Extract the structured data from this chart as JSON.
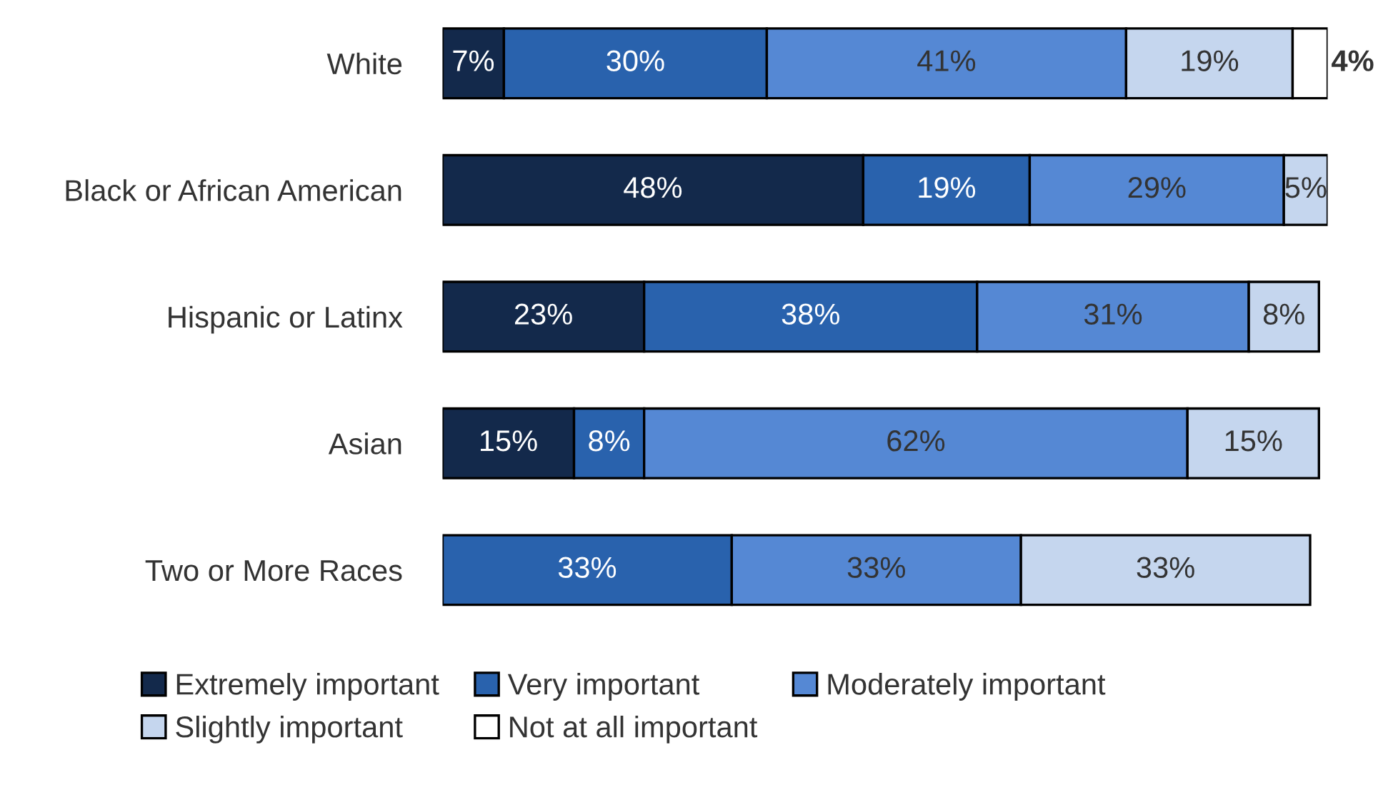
{
  "chart_data": {
    "type": "bar",
    "orientation": "horizontal",
    "stacked": true,
    "legend": "bottom",
    "categories": [
      "White",
      "Black or African American",
      "Hispanic or Latinx",
      "Asian",
      "Two or More Races"
    ],
    "series": [
      {
        "name": "Extremely important",
        "color": "#13294b",
        "values": [
          7,
          48,
          23,
          15,
          null
        ],
        "value_labels": [
          "7%",
          "48%",
          "23%",
          "15%",
          null
        ]
      },
      {
        "name": "Very important",
        "color": "#2962ad",
        "values": [
          30,
          19,
          38,
          8,
          33
        ],
        "value_labels": [
          "30%",
          "19%",
          "38%",
          "8%",
          "33%"
        ]
      },
      {
        "name": "Moderately important",
        "color": "#5588d4",
        "values": [
          41,
          29,
          31,
          62,
          33
        ],
        "value_labels": [
          "41%",
          "29%",
          "31%",
          "62%",
          "33%"
        ]
      },
      {
        "name": "Slightly important",
        "color": "#c5d6ee",
        "values": [
          19,
          5,
          8,
          15,
          33
        ],
        "value_labels": [
          "19%",
          "5%",
          "8%",
          "15%",
          "33%"
        ]
      },
      {
        "name": "Not at all important",
        "color": "#ffffff",
        "values": [
          4,
          null,
          null,
          null,
          null
        ],
        "value_labels": [
          "4%",
          null,
          null,
          null,
          null
        ]
      }
    ]
  }
}
